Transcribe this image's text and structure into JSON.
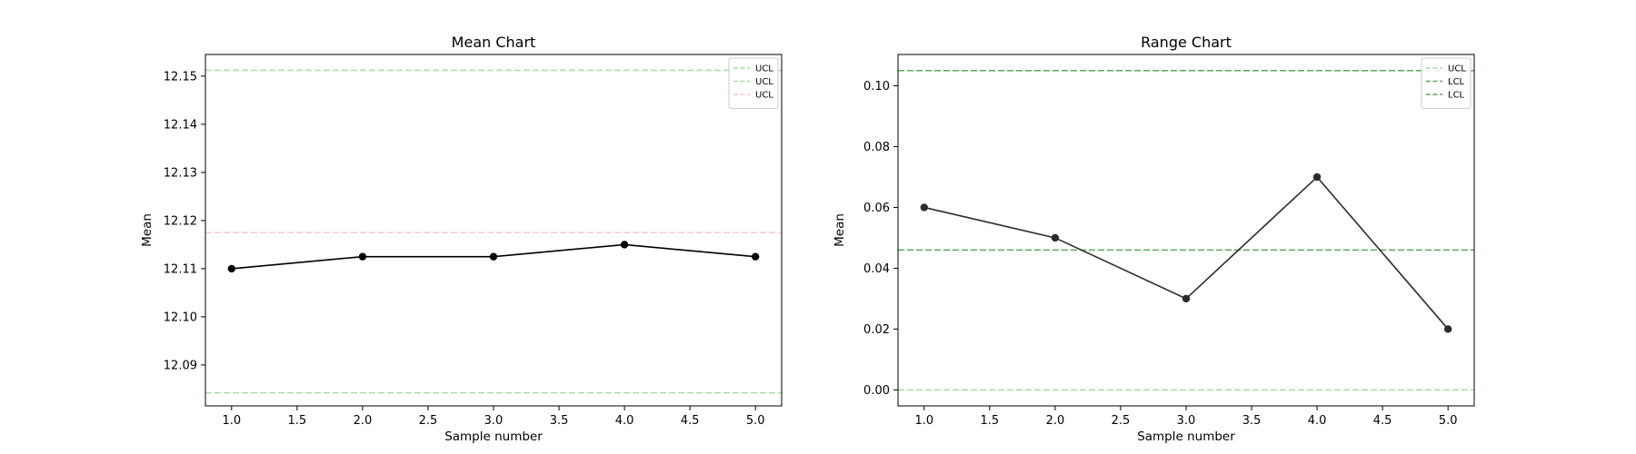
{
  "chart_data": [
    {
      "type": "line",
      "title": "Mean Chart",
      "xlabel": "Sample number",
      "ylabel": "Mean",
      "xlim": [
        0.8,
        5.2
      ],
      "ylim": [
        12.0815,
        12.1545
      ],
      "x_ticks": [
        1.0,
        1.5,
        2.0,
        2.5,
        3.0,
        3.5,
        4.0,
        4.5,
        5.0
      ],
      "x_tick_labels": [
        "1.0",
        "1.5",
        "2.0",
        "2.5",
        "3.0",
        "3.5",
        "4.0",
        "4.5",
        "5.0"
      ],
      "y_ticks": [
        12.09,
        12.1,
        12.11,
        12.12,
        12.13,
        12.14,
        12.15
      ],
      "y_tick_labels": [
        "12.09",
        "12.10",
        "12.11",
        "12.12",
        "12.13",
        "12.14",
        "12.15"
      ],
      "grid": false,
      "legend_position": "top-right",
      "series": [
        {
          "x": [
            1,
            2,
            3,
            4,
            5
          ],
          "values": [
            12.11,
            12.1125,
            12.1125,
            12.115,
            12.1125
          ],
          "color": "#000000"
        }
      ],
      "reference_lines": [
        {
          "name": "UCL",
          "value": 12.1512,
          "color": "#a9dba9"
        },
        {
          "name": "UCL",
          "value": 12.0842,
          "color": "#a9dba9"
        },
        {
          "name": "UCL",
          "value": 12.1175,
          "color": "#f4c9d3"
        }
      ]
    },
    {
      "type": "line",
      "title": "Range Chart",
      "xlabel": "Sample number",
      "ylabel": "Mean",
      "xlim": [
        0.8,
        5.2
      ],
      "ylim": [
        -0.00525,
        0.1103
      ],
      "x_ticks": [
        1.0,
        1.5,
        2.0,
        2.5,
        3.0,
        3.5,
        4.0,
        4.5,
        5.0
      ],
      "x_tick_labels": [
        "1.0",
        "1.5",
        "2.0",
        "2.5",
        "3.0",
        "3.5",
        "4.0",
        "4.5",
        "5.0"
      ],
      "y_ticks": [
        0.0,
        0.02,
        0.04,
        0.06,
        0.08,
        0.1
      ],
      "y_tick_labels": [
        "0.00",
        "0.02",
        "0.04",
        "0.06",
        "0.08",
        "0.10"
      ],
      "grid": false,
      "legend_position": "top-right",
      "series": [
        {
          "x": [
            1,
            2,
            3,
            4,
            5
          ],
          "values": [
            0.06,
            0.05,
            0.03,
            0.07,
            0.02
          ],
          "color": "#2b2b2b"
        }
      ],
      "reference_lines": [
        {
          "name": "UCL",
          "value": 0.0,
          "color": "#a9dba9"
        },
        {
          "name": "LCL",
          "value": 0.046,
          "color": "#5aa85a"
        },
        {
          "name": "LCL",
          "value": 0.105,
          "color": "#5aa85a"
        }
      ]
    }
  ]
}
